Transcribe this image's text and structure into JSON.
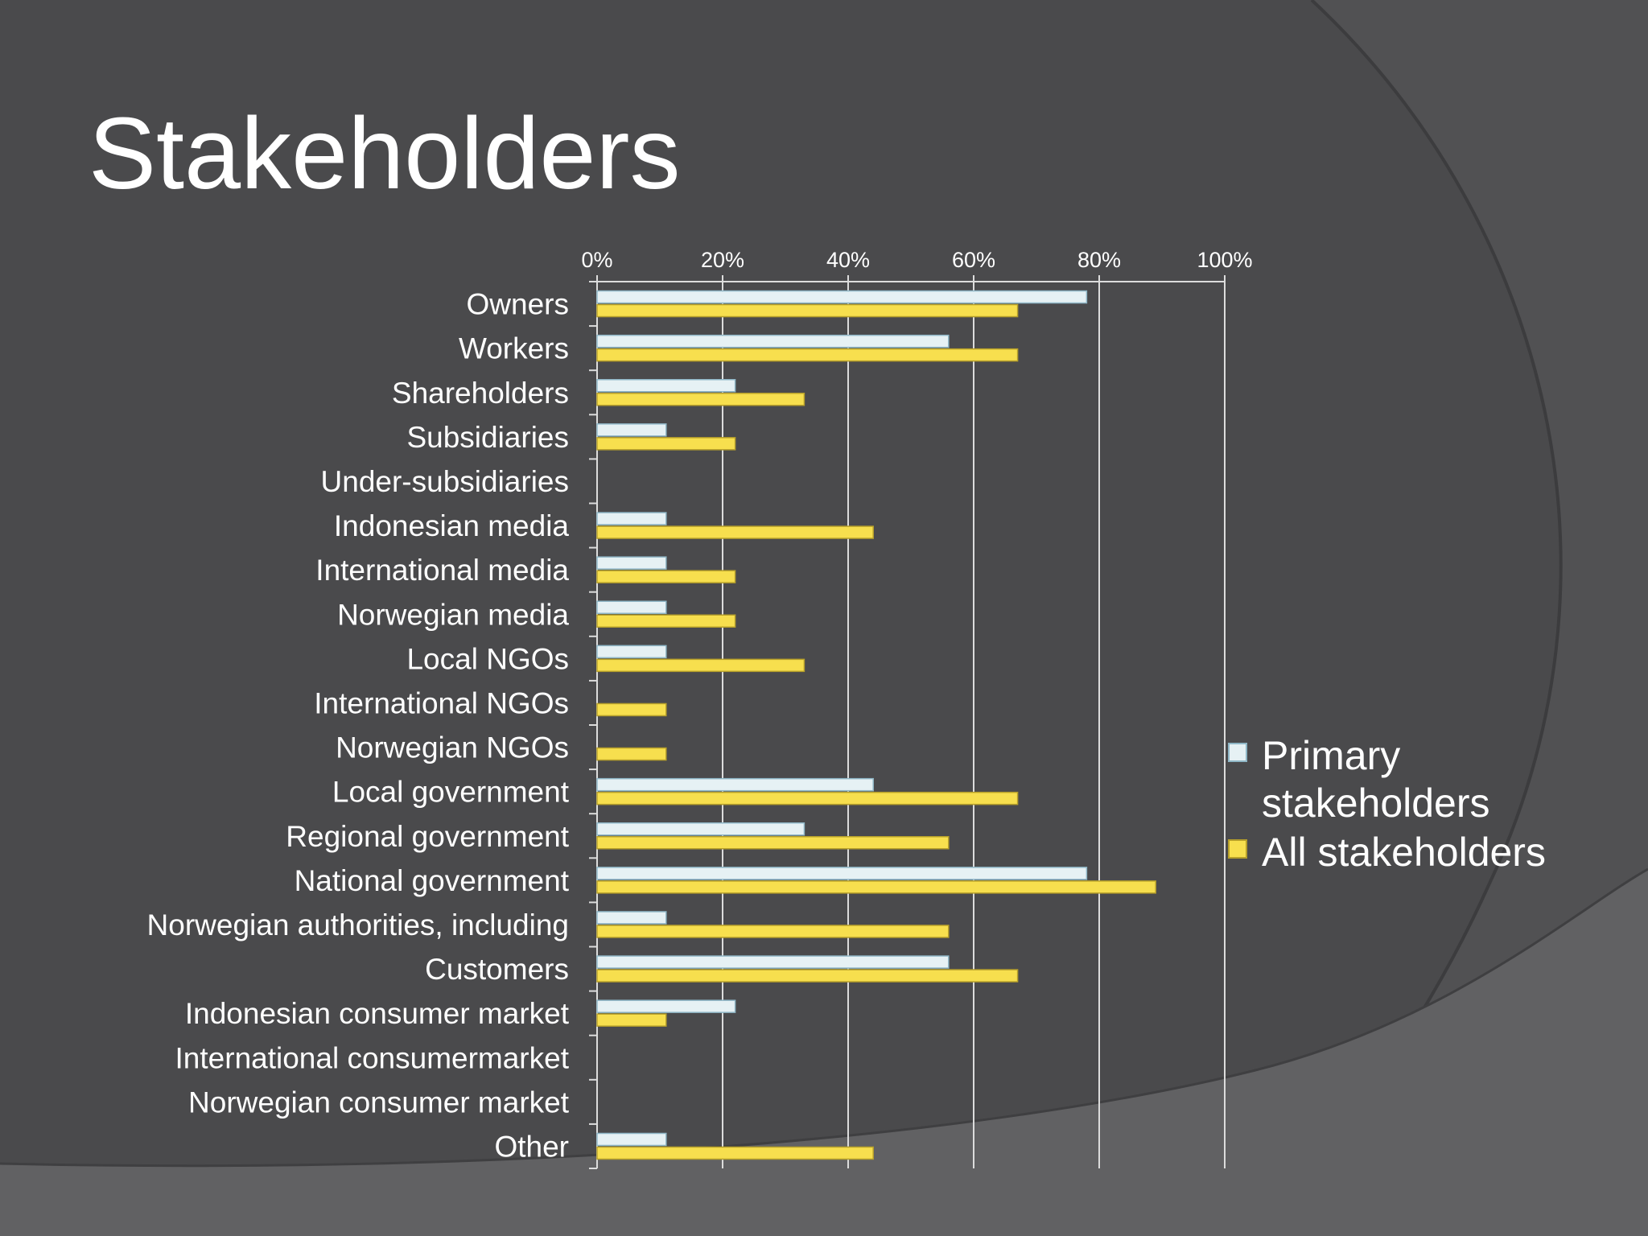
{
  "slide": {
    "title": "Stakeholders"
  },
  "colors": {
    "background": "#4a4a4c",
    "series_primary": "#e6f1f4",
    "series_primary_border": "#8fb7c7",
    "series_all": "#f7df4e",
    "series_all_border": "#b7a02a",
    "gridline": "#dcdcdc",
    "text": "#ffffff"
  },
  "chart_data": {
    "type": "bar",
    "orientation": "horizontal",
    "title": "",
    "xlabel": "",
    "ylabel": "",
    "xlim": [
      0,
      100
    ],
    "ticks": [
      0,
      20,
      40,
      60,
      80,
      100
    ],
    "tick_labels": [
      "0%",
      "20%",
      "40%",
      "60%",
      "80%",
      "100%"
    ],
    "grid": true,
    "legend_position": "right",
    "categories": [
      "Owners",
      "Workers",
      "Shareholders",
      "Subsidiaries",
      "Under-subsidiaries",
      "Indonesian media",
      "International media",
      "Norwegian media",
      "Local NGOs",
      "International NGOs",
      "Norwegian NGOs",
      "Local government",
      "Regional government",
      "National government",
      "Norwegian authorities, including",
      "Customers",
      "Indonesian consumer market",
      "International consumermarket",
      "Norwegian consumer market",
      "Other"
    ],
    "series": [
      {
        "name": "Primary stakeholders",
        "color": "#e6f1f4",
        "values": [
          78,
          56,
          22,
          11,
          0,
          11,
          11,
          11,
          11,
          0,
          0,
          44,
          33,
          78,
          11,
          56,
          22,
          0,
          0,
          11
        ]
      },
      {
        "name": "All stakeholders",
        "color": "#f7df4e",
        "values": [
          67,
          67,
          33,
          22,
          0,
          44,
          22,
          22,
          33,
          11,
          11,
          67,
          56,
          89,
          56,
          67,
          11,
          0,
          0,
          44
        ]
      }
    ]
  }
}
